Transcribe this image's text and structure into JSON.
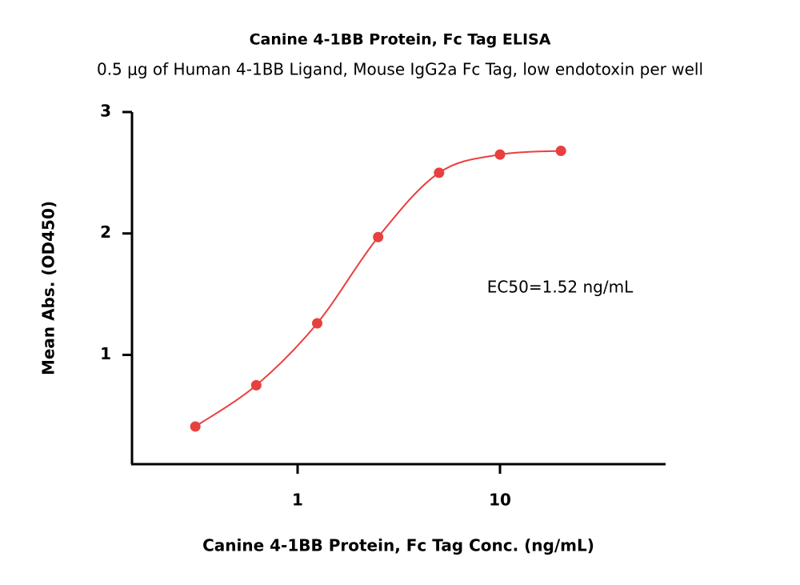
{
  "chart_data": {
    "type": "line",
    "title": "Canine 4-1BB Protein, Fc Tag ELISA",
    "subtitle": "0.5 μg of Human 4-1BB Ligand, Mouse IgG2a Fc Tag, low endotoxin per well",
    "x_label": "Canine 4-1BB Protein, Fc Tag Conc. (ng/mL)",
    "y_label": "Mean Abs. (OD450)",
    "annotation": "EC50=1.52 ng/mL",
    "x": [
      0.3125,
      0.625,
      1.25,
      2.5,
      5,
      10,
      20
    ],
    "series": [
      {
        "color": "#e8403f",
        "values": [
          0.41,
          0.75,
          1.26,
          1.97,
          2.5,
          2.65,
          2.68
        ]
      }
    ],
    "xscale": "log",
    "xlim": [
      0.152,
      65.8
    ],
    "xticks": [
      1,
      10
    ],
    "ylim": [
      0.1,
      3
    ],
    "yticks": [
      1,
      2,
      3
    ]
  }
}
